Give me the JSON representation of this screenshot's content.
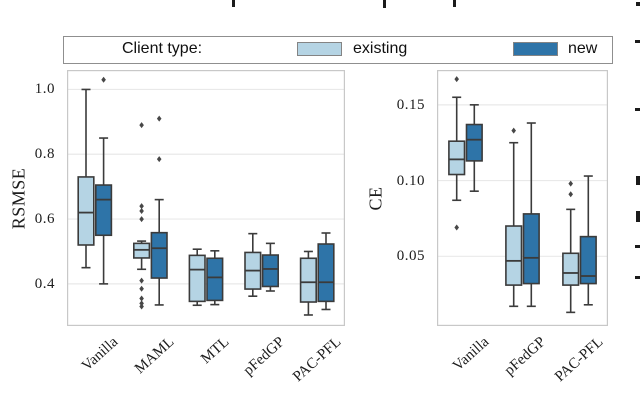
{
  "legend": {
    "title": "Client type:",
    "items": [
      {
        "label": "existing",
        "color": "#b5d4e4"
      },
      {
        "label": "new",
        "color": "#2e74a8"
      }
    ]
  },
  "colors": {
    "box_edge": "#3b3b3b",
    "median": "#3b3b3b",
    "flier": "#474747",
    "grid": "#e9e9e9",
    "frame": "#c8c8c8",
    "background": "#ffffff"
  },
  "chart_data": [
    {
      "type": "box",
      "ylabel": "RSMSE",
      "ylim": [
        0.27,
        1.06
      ],
      "yticks": [
        0.4,
        0.6,
        0.8,
        1.0
      ],
      "ytick_labels": [
        "0.4",
        "0.6",
        "0.8",
        "1.0"
      ],
      "grid": true,
      "categories": [
        "Vanilla",
        "MAML",
        "MTL",
        "pFedGP",
        "PAC-PFL"
      ],
      "series": [
        {
          "name": "existing",
          "color": "#b5d4e4",
          "boxes": [
            {
              "lo": 0.45,
              "q1": 0.52,
              "med": 0.62,
              "q3": 0.73,
              "hi": 1.0,
              "out": []
            },
            {
              "lo": 0.445,
              "q1": 0.48,
              "med": 0.505,
              "q3": 0.525,
              "hi": 0.532,
              "out": [
                0.89,
                0.64,
                0.625,
                0.6,
                0.41,
                0.385,
                0.355,
                0.34,
                0.33
              ]
            },
            {
              "lo": 0.334,
              "q1": 0.346,
              "med": 0.444,
              "q3": 0.488,
              "hi": 0.507,
              "out": []
            },
            {
              "lo": 0.362,
              "q1": 0.384,
              "med": 0.441,
              "q3": 0.497,
              "hi": 0.555,
              "out": []
            },
            {
              "lo": 0.304,
              "q1": 0.344,
              "med": 0.405,
              "q3": 0.479,
              "hi": 0.5,
              "out": []
            }
          ]
        },
        {
          "name": "new",
          "color": "#2e74a8",
          "boxes": [
            {
              "lo": 0.4,
              "q1": 0.55,
              "med": 0.66,
              "q3": 0.705,
              "hi": 0.85,
              "out": [
                1.03
              ]
            },
            {
              "lo": 0.335,
              "q1": 0.418,
              "med": 0.51,
              "q3": 0.558,
              "hi": 0.66,
              "out": [
                0.91,
                0.785
              ]
            },
            {
              "lo": 0.336,
              "q1": 0.349,
              "med": 0.42,
              "q3": 0.479,
              "hi": 0.502,
              "out": []
            },
            {
              "lo": 0.378,
              "q1": 0.392,
              "med": 0.446,
              "q3": 0.489,
              "hi": 0.525,
              "out": []
            },
            {
              "lo": 0.321,
              "q1": 0.346,
              "med": 0.405,
              "q3": 0.523,
              "hi": 0.557,
              "out": []
            }
          ]
        }
      ]
    },
    {
      "type": "box",
      "ylabel": "CE",
      "ylim": [
        0.004,
        0.173
      ],
      "yticks": [
        0.05,
        0.1,
        0.15
      ],
      "ytick_labels": [
        "0.05",
        "0.10",
        "0.15"
      ],
      "grid": true,
      "categories": [
        "Vanilla",
        "pFedGP",
        "PAC-PFL"
      ],
      "series": [
        {
          "name": "existing",
          "color": "#b5d4e4",
          "boxes": [
            {
              "lo": 0.087,
              "q1": 0.104,
              "med": 0.114,
              "q3": 0.126,
              "hi": 0.155,
              "out": [
                0.167,
                0.069
              ]
            },
            {
              "lo": 0.017,
              "q1": 0.031,
              "med": 0.047,
              "q3": 0.07,
              "hi": 0.125,
              "out": [
                0.133
              ]
            },
            {
              "lo": 0.013,
              "q1": 0.031,
              "med": 0.039,
              "q3": 0.052,
              "hi": 0.081,
              "out": [
                0.098,
                0.091
              ]
            }
          ]
        },
        {
          "name": "new",
          "color": "#2e74a8",
          "boxes": [
            {
              "lo": 0.093,
              "q1": 0.113,
              "med": 0.127,
              "q3": 0.137,
              "hi": 0.15,
              "out": []
            },
            {
              "lo": 0.017,
              "q1": 0.032,
              "med": 0.049,
              "q3": 0.078,
              "hi": 0.138,
              "out": []
            },
            {
              "lo": 0.018,
              "q1": 0.032,
              "med": 0.037,
              "q3": 0.063,
              "hi": 0.103,
              "out": []
            }
          ]
        }
      ]
    }
  ]
}
